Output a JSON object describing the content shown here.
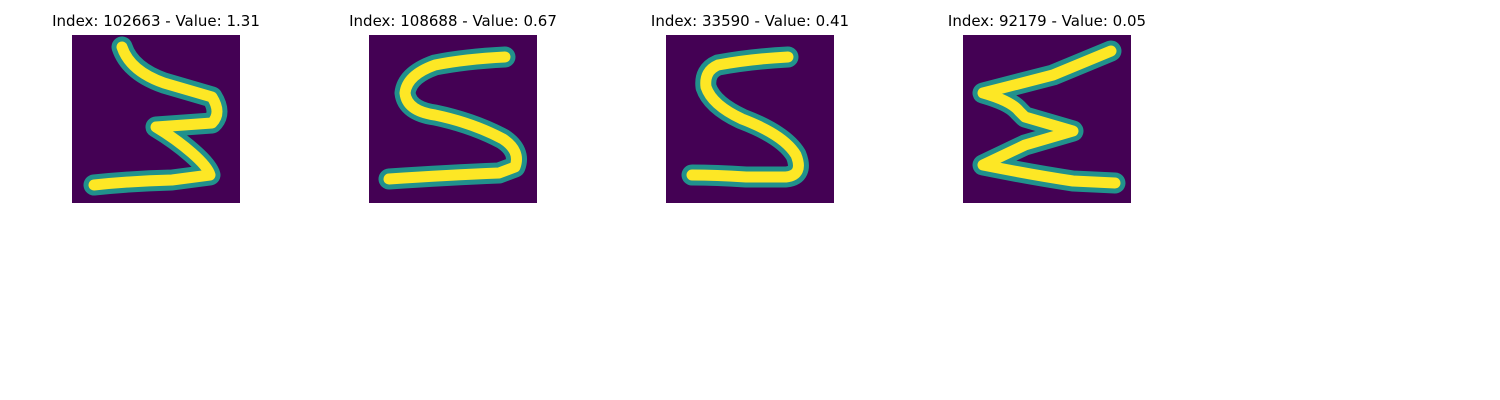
{
  "colors": {
    "background": "#440154",
    "halo": "#21918c",
    "stroke": "#fde725"
  },
  "panels": [
    {
      "index_label": "Index: 102663 - Value: 1.31",
      "glyph": "three"
    },
    {
      "index_label": "Index: 108688 - Value: 0.67",
      "glyph": "five-s"
    },
    {
      "index_label": "Index: 33590 - Value: 0.41",
      "glyph": "five-s"
    },
    {
      "index_label": "Index: 92179 - Value: 0.05",
      "glyph": "sigma-zigzag"
    }
  ]
}
